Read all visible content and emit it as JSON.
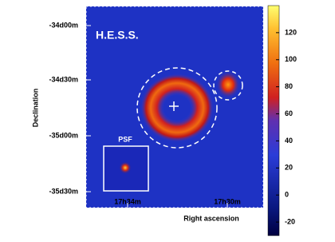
{
  "chart_data": {
    "type": "image",
    "title": "H.E.S.S.",
    "xlabel": "Right ascension",
    "ylabel": "Declination",
    "xticklabels": [
      "17h34m",
      "17h30m"
    ],
    "yticklabels": [
      "-34d00m",
      "-34d30m",
      "-35d00m",
      "-35d30m"
    ],
    "annotation": "PSF",
    "colorbar": {
      "lim": [
        -30,
        140
      ],
      "ticks": [
        -20,
        0,
        20,
        40,
        60,
        80,
        100,
        120
      ]
    }
  }
}
